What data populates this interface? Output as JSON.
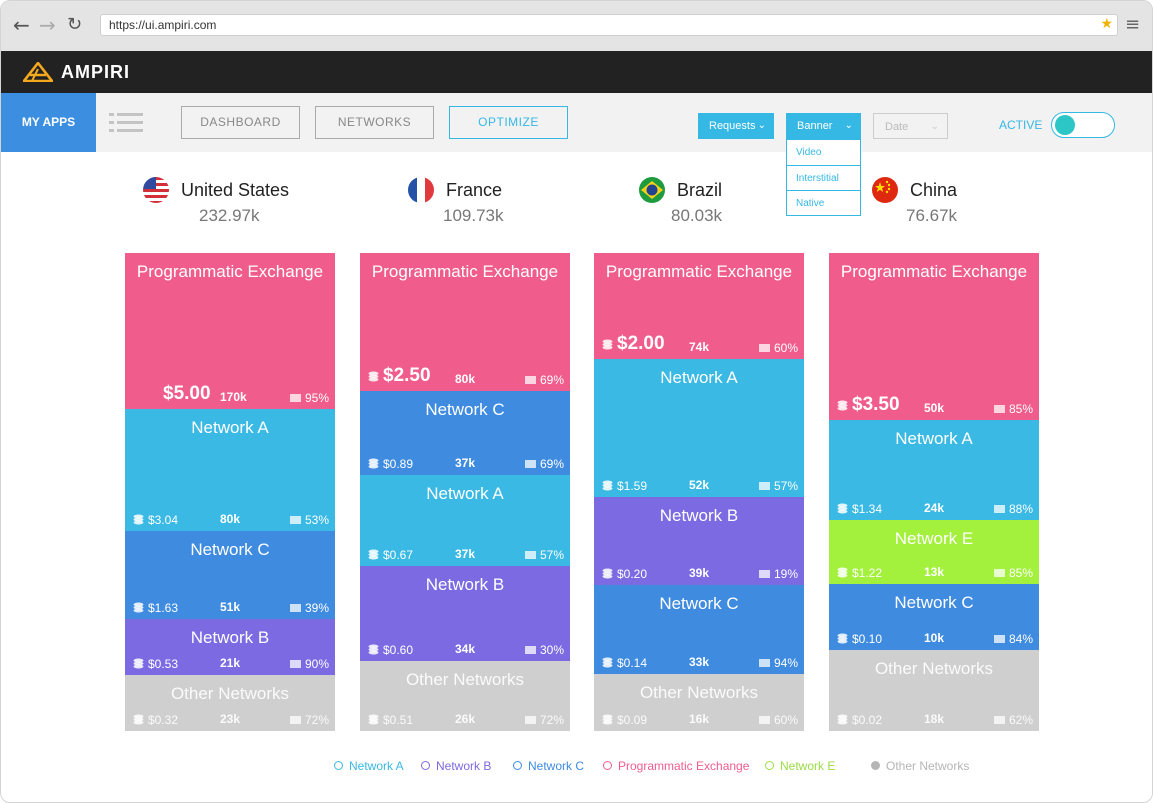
{
  "browser": {
    "url": "https://ui.ampiri.com"
  },
  "app": {
    "brand": "AMPIRI"
  },
  "toolbar": {
    "my_apps": "MY APPS",
    "tabs": [
      "DASHBOARD",
      "NETWORKS",
      "OPTIMIZE"
    ],
    "selected_tab": "OPTIMIZE",
    "dropdowns": {
      "requests": "Requests",
      "banner": "Banner",
      "date": "Date"
    },
    "banner_options": [
      "Video",
      "Interstitial",
      "Native"
    ],
    "active_label": "ACTIVE",
    "active_on": true
  },
  "colors": {
    "Programmatic Exchange": "#f05d8c",
    "Network A": "#39b9e3",
    "Network B": "#7b6ae2",
    "Network C": "#3f8be0",
    "Network E": "#a3f03d",
    "Other Networks": "#cfcfcf"
  },
  "countries": [
    {
      "name": "United States",
      "flag": "us-flag-icon",
      "total": "232.97k",
      "segments": [
        {
          "name": "Programmatic Exchange",
          "price": "$5.00",
          "requests": "170k",
          "rate": "95%",
          "share": 0.326
        },
        {
          "name": "Network A",
          "price": "$3.04",
          "requests": "80k",
          "rate": "53%",
          "share": 0.255
        },
        {
          "name": "Network C",
          "price": "$1.63",
          "requests": "51k",
          "rate": "39%",
          "share": 0.184
        },
        {
          "name": "Network B",
          "price": "$0.53",
          "requests": "21k",
          "rate": "90%",
          "share": 0.117
        },
        {
          "name": "Other Networks",
          "price": "$0.32",
          "requests": "23k",
          "rate": "72%",
          "share": 0.118
        }
      ]
    },
    {
      "name": "France",
      "flag": "fr-flag-icon",
      "total": "109.73k",
      "segments": [
        {
          "name": "Programmatic Exchange",
          "price": "$2.50",
          "requests": "80k",
          "rate": "69%",
          "share": 0.289
        },
        {
          "name": "Network C",
          "price": "$0.89",
          "requests": "37k",
          "rate": "69%",
          "share": 0.176
        },
        {
          "name": "Network A",
          "price": "$0.67",
          "requests": "37k",
          "rate": "57%",
          "share": 0.19
        },
        {
          "name": "Network B",
          "price": "$0.60",
          "requests": "34k",
          "rate": "30%",
          "share": 0.199
        },
        {
          "name": "Other Networks",
          "price": "$0.51",
          "requests": "26k",
          "rate": "72%",
          "share": 0.146
        }
      ]
    },
    {
      "name": "Brazil",
      "flag": "br-flag-icon",
      "total": "80.03k",
      "segments": [
        {
          "name": "Programmatic Exchange",
          "price": "$2.00",
          "requests": "74k",
          "rate": "60%",
          "share": 0.222
        },
        {
          "name": "Network A",
          "price": "$1.59",
          "requests": "52k",
          "rate": "57%",
          "share": 0.289
        },
        {
          "name": "Network B",
          "price": "$0.20",
          "requests": "39k",
          "rate": "19%",
          "share": 0.184
        },
        {
          "name": "Network C",
          "price": "$0.14",
          "requests": "33k",
          "rate": "94%",
          "share": 0.186
        },
        {
          "name": "Other Networks",
          "price": "$0.09",
          "requests": "16k",
          "rate": "60%",
          "share": 0.119
        }
      ]
    },
    {
      "name": "China",
      "flag": "cn-flag-icon",
      "total": "76.67k",
      "segments": [
        {
          "name": "Programmatic Exchange",
          "price": "$3.50",
          "requests": "50k",
          "rate": "85%",
          "share": 0.349
        },
        {
          "name": "Network A",
          "price": "$1.34",
          "requests": "24k",
          "rate": "88%",
          "share": 0.21
        },
        {
          "name": "Network E",
          "price": "$1.22",
          "requests": "13k",
          "rate": "85%",
          "share": 0.134
        },
        {
          "name": "Network C",
          "price": "$0.10",
          "requests": "10k",
          "rate": "84%",
          "share": 0.138
        },
        {
          "name": "Other Networks",
          "price": "$0.02",
          "requests": "18k",
          "rate": "62%",
          "share": 0.169
        }
      ]
    }
  ],
  "legend": [
    "Network A",
    "Network B",
    "Network C",
    "Programmatic Exchange",
    "Network E",
    "Other Networks"
  ]
}
